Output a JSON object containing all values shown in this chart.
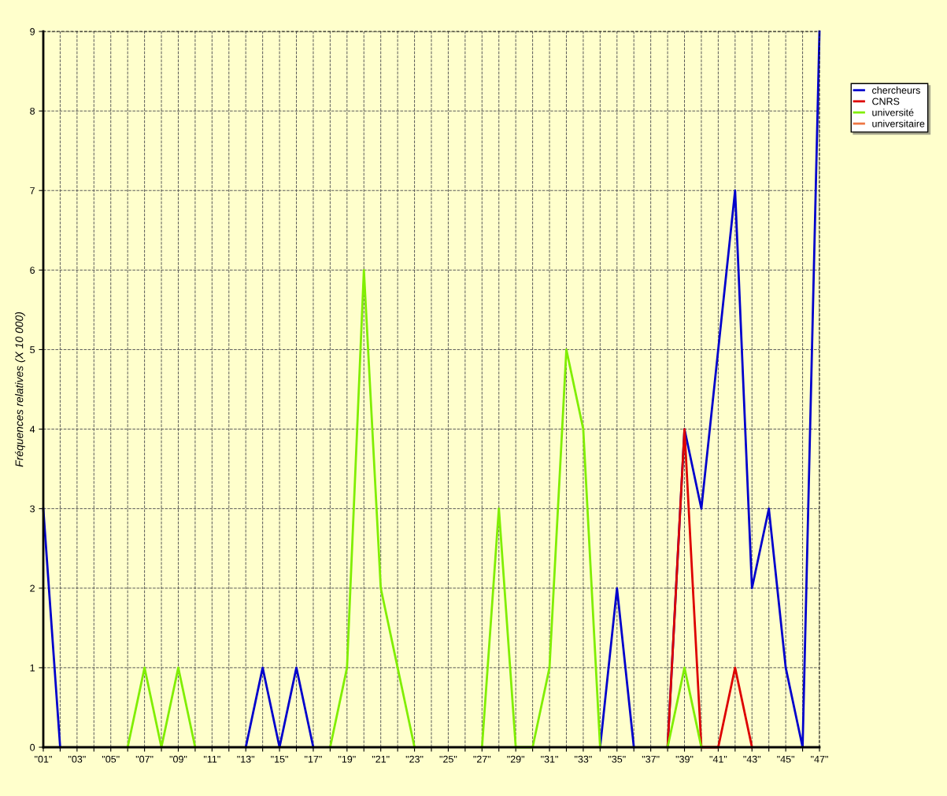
{
  "chart_data": {
    "type": "line",
    "ylabel": "Fréquences relatives (X 10 000)",
    "categories": [
      "\"01\"",
      null,
      "\"03\"",
      null,
      "\"05\"",
      null,
      "\"07\"",
      null,
      "\"09\"",
      null,
      "\"11\"",
      null,
      "\"13\"",
      null,
      "\"15\"",
      null,
      "\"17\"",
      null,
      "\"19\"",
      null,
      "\"21\"",
      null,
      "\"23\"",
      null,
      "\"25\"",
      null,
      "\"27\"",
      null,
      "\"29\"",
      null,
      "\"31\"",
      null,
      "\"33\"",
      null,
      "\"35\"",
      null,
      "\"37\"",
      null,
      "\"39\"",
      null,
      "\"41\"",
      null,
      "\"43\"",
      null,
      "\"45\"",
      null,
      "\"47\""
    ],
    "series": [
      {
        "name": "chercheurs",
        "color": "#0000cc",
        "values": [
          3,
          0,
          null,
          null,
          null,
          null,
          null,
          null,
          null,
          null,
          null,
          null,
          0,
          1,
          0,
          1,
          0,
          null,
          null,
          null,
          null,
          null,
          null,
          null,
          null,
          null,
          null,
          null,
          null,
          null,
          null,
          null,
          null,
          0,
          2,
          0,
          null,
          0,
          4,
          3,
          5,
          7,
          2,
          3,
          1,
          0,
          9
        ]
      },
      {
        "name": "CNRS",
        "color": "#dd0000",
        "values": [
          null,
          null,
          null,
          null,
          null,
          null,
          null,
          null,
          null,
          null,
          null,
          null,
          null,
          null,
          null,
          null,
          null,
          null,
          null,
          null,
          null,
          null,
          null,
          null,
          null,
          null,
          null,
          null,
          null,
          null,
          null,
          null,
          null,
          null,
          null,
          null,
          null,
          0,
          4,
          0,
          0,
          1,
          0,
          null,
          null,
          null,
          null
        ]
      },
      {
        "name": "université",
        "color": "#80ee00",
        "values": [
          null,
          null,
          null,
          null,
          null,
          0,
          1,
          0,
          1,
          0,
          null,
          null,
          null,
          null,
          null,
          null,
          null,
          0,
          1,
          6,
          2,
          1,
          0,
          null,
          null,
          null,
          0,
          3,
          0,
          0,
          1,
          5,
          4,
          0,
          null,
          null,
          null,
          0,
          1,
          0,
          null,
          null,
          null,
          null,
          null,
          null,
          null
        ]
      },
      {
        "name": "universitaire",
        "color": "#ee7744",
        "values": [
          null,
          null,
          null,
          null,
          null,
          null,
          null,
          null,
          null,
          null,
          null,
          null,
          null,
          null,
          null,
          null,
          null,
          null,
          null,
          null,
          null,
          null,
          null,
          null,
          null,
          null,
          null,
          null,
          null,
          null,
          null,
          null,
          null,
          null,
          null,
          null,
          null,
          null,
          null,
          null,
          null,
          null,
          null,
          null,
          null,
          null,
          null
        ]
      }
    ],
    "ylim": [
      0,
      9
    ],
    "yticks": [
      0,
      1,
      2,
      3,
      4,
      5,
      6,
      7,
      8,
      9
    ],
    "grid": true,
    "legend": "top right",
    "marker": "none",
    "line_style": "solid"
  }
}
